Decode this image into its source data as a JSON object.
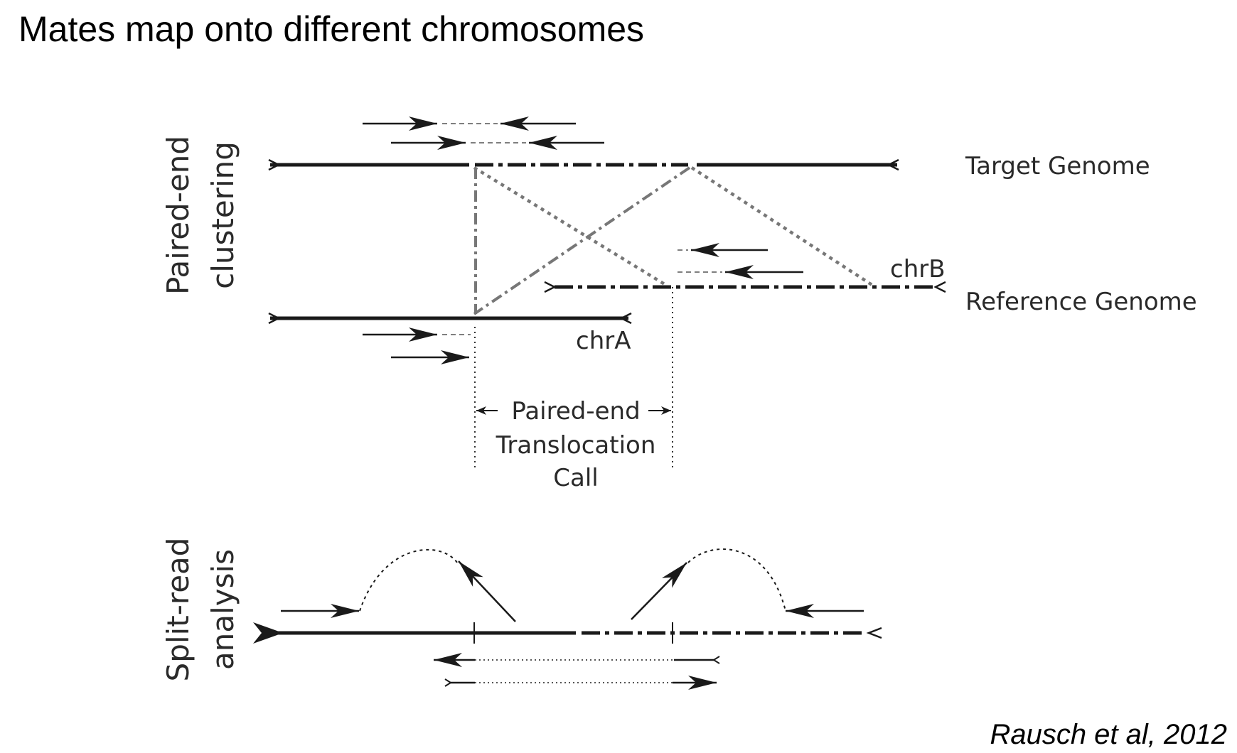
{
  "title": "Mates map onto different chromosomes",
  "citation": "Rausch et al, 2012",
  "diagram": {
    "section_labels": {
      "paired_end_line1": "Paired-end",
      "paired_end_line2": "clustering",
      "split_read_line1": "Split-read",
      "split_read_line2": "analysis"
    },
    "genome_labels": {
      "target": "Target Genome",
      "reference": "Reference Genome",
      "chr_a": "chrA",
      "chr_b": "chrB"
    },
    "call_label": {
      "line1": "Paired-end",
      "line2": "Translocation",
      "line3": "Call"
    }
  }
}
